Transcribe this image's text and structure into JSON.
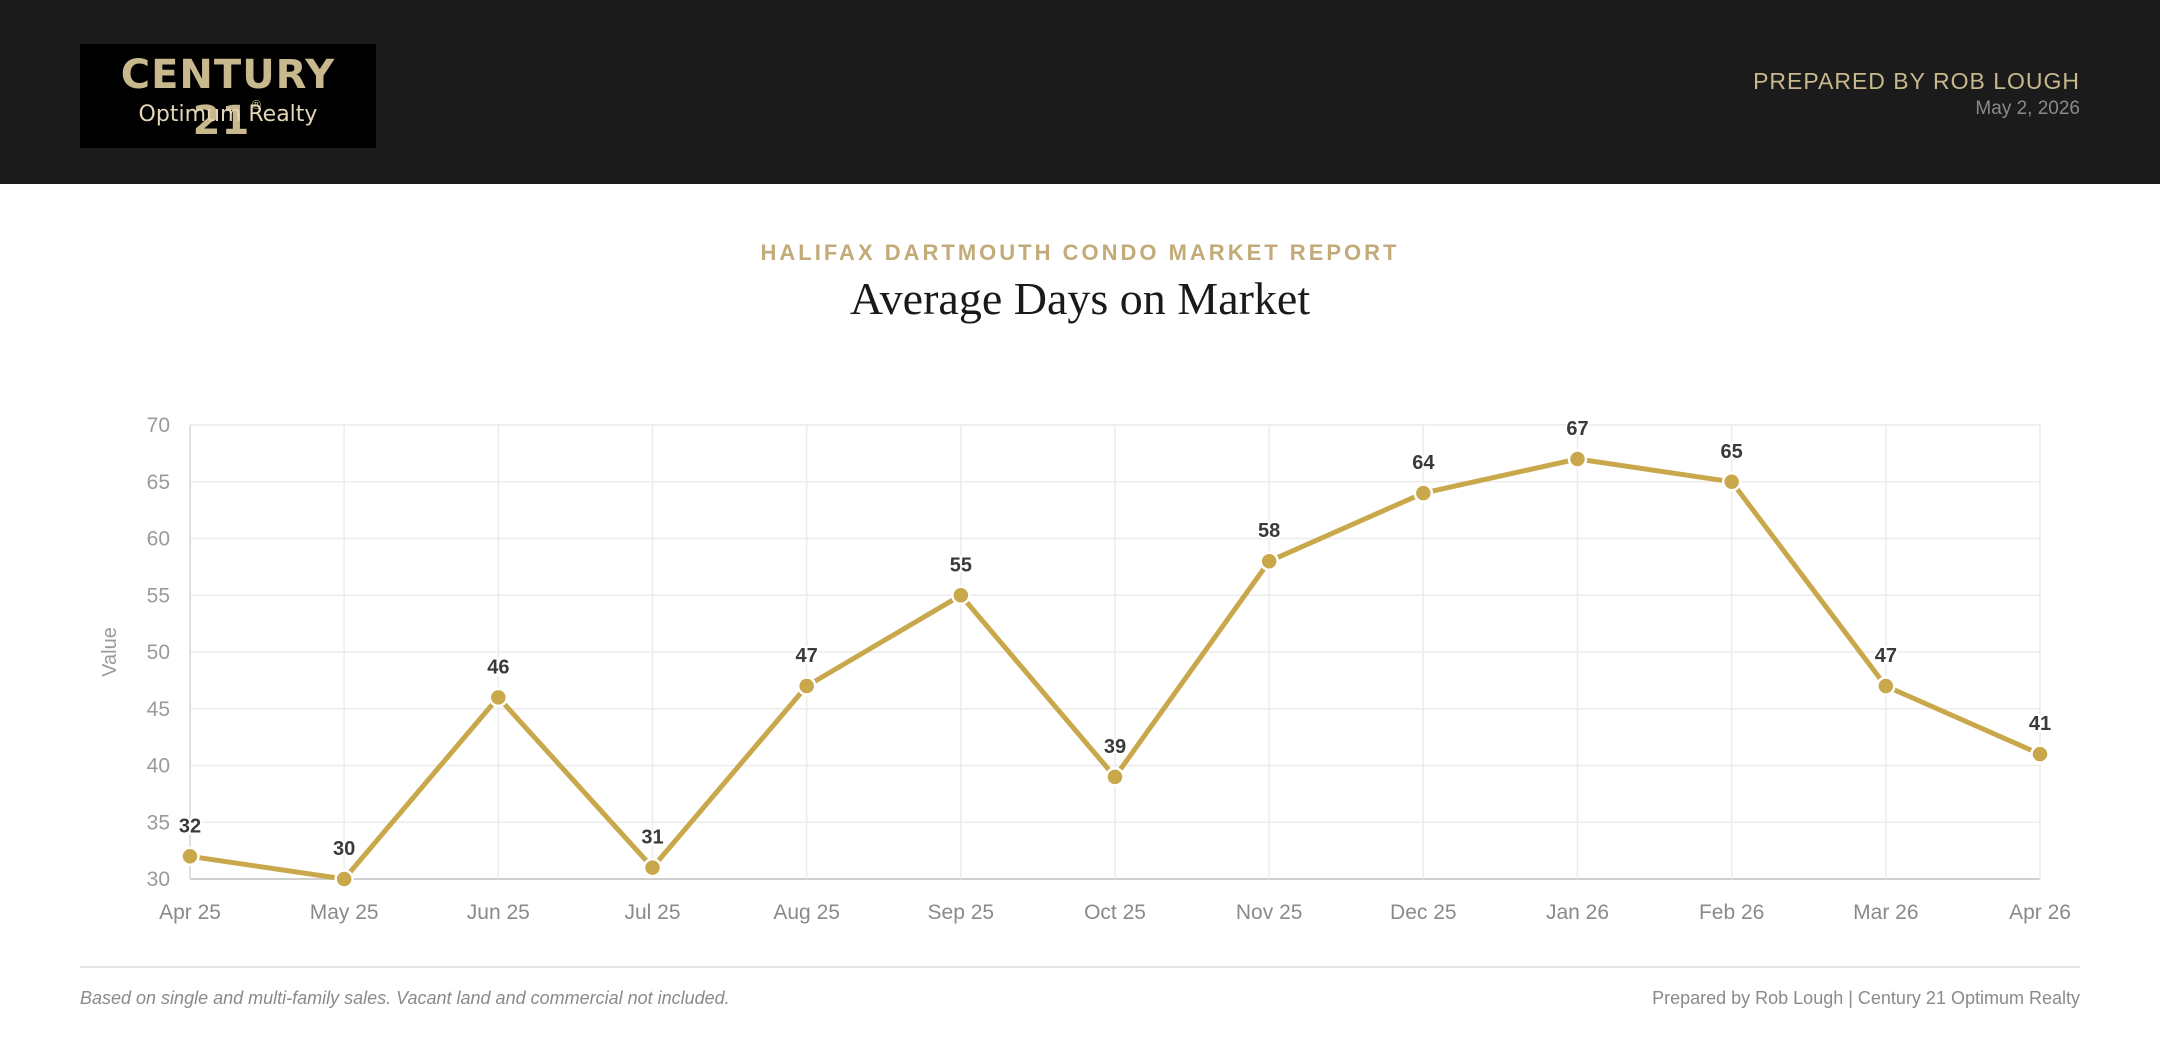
{
  "header": {
    "logo_title": "CENTURY 21",
    "logo_reg": "®",
    "logo_sub": "Optimum Realty",
    "prepared_by": "PREPARED BY ROB LOUGH",
    "date": "May 2, 2026"
  },
  "report": {
    "kicker": "HALIFAX DARTMOUTH CONDO MARKET REPORT",
    "title": "Average Days on Market"
  },
  "chart_data": {
    "type": "line",
    "categories": [
      "Apr 25",
      "May 25",
      "Jun 25",
      "Jul 25",
      "Aug 25",
      "Sep 25",
      "Oct 25",
      "Nov 25",
      "Dec 25",
      "Jan 26",
      "Feb 26",
      "Mar 26",
      "Apr 26"
    ],
    "values": [
      32,
      30,
      46,
      31,
      47,
      55,
      39,
      58,
      64,
      67,
      65,
      47,
      41
    ],
    "title": "Average Days on Market",
    "xlabel": "",
    "ylabel": "Value",
    "ylim": [
      30,
      70
    ],
    "yticks": [
      30,
      35,
      40,
      45,
      50,
      55,
      60,
      65,
      70
    ],
    "grid": true,
    "data_labels": true,
    "line_color": "#c9a84c",
    "point_color": "#c9a84c"
  },
  "footer": {
    "note": "Based on single and multi-family sales. Vacant land and commercial not included.",
    "credit": "Prepared by Rob Lough | Century 21 Optimum Realty"
  }
}
